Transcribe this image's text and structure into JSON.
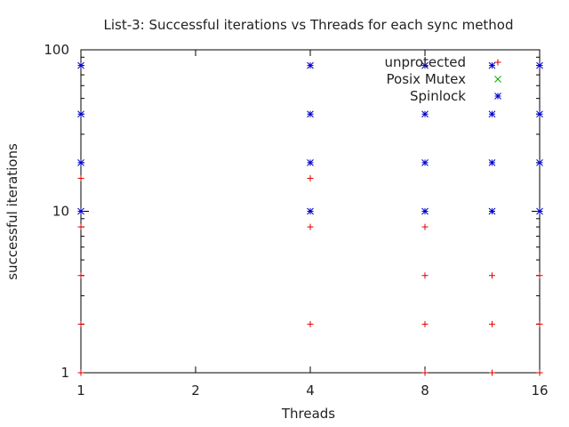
{
  "chart_data": {
    "type": "scatter",
    "title": "List-3: Successful iterations vs Threads for each sync method",
    "xlabel": "Threads",
    "ylabel": "successful iterations",
    "x_scale": "log2",
    "y_scale": "log10",
    "xlim": [
      1,
      16
    ],
    "ylim": [
      1,
      100
    ],
    "x_ticks": [
      1,
      2,
      4,
      8,
      16
    ],
    "y_ticks": [
      1,
      10,
      100
    ],
    "legend_position": "top-right",
    "grid": false,
    "series": [
      {
        "name": "unprotected",
        "color": "#dd0000",
        "marker": "plus",
        "points": [
          {
            "x": 1,
            "y": 1
          },
          {
            "x": 1,
            "y": 2
          },
          {
            "x": 1,
            "y": 4
          },
          {
            "x": 1,
            "y": 8
          },
          {
            "x": 1,
            "y": 16
          },
          {
            "x": 4,
            "y": 2
          },
          {
            "x": 4,
            "y": 8
          },
          {
            "x": 4,
            "y": 16
          },
          {
            "x": 8,
            "y": 1
          },
          {
            "x": 8,
            "y": 2
          },
          {
            "x": 8,
            "y": 4
          },
          {
            "x": 8,
            "y": 8
          },
          {
            "x": 12,
            "y": 1
          },
          {
            "x": 12,
            "y": 2
          },
          {
            "x": 12,
            "y": 4
          },
          {
            "x": 16,
            "y": 1
          },
          {
            "x": 16,
            "y": 2
          },
          {
            "x": 16,
            "y": 4
          }
        ]
      },
      {
        "name": "Posix Mutex",
        "color": "#00aa00",
        "marker": "cross",
        "points": []
      },
      {
        "name": "Spinlock",
        "color": "#0000cc",
        "marker": "star",
        "points": [
          {
            "x": 1,
            "y": 10
          },
          {
            "x": 1,
            "y": 20
          },
          {
            "x": 1,
            "y": 40
          },
          {
            "x": 1,
            "y": 80
          },
          {
            "x": 4,
            "y": 10
          },
          {
            "x": 4,
            "y": 20
          },
          {
            "x": 4,
            "y": 40
          },
          {
            "x": 4,
            "y": 80
          },
          {
            "x": 8,
            "y": 10
          },
          {
            "x": 8,
            "y": 20
          },
          {
            "x": 8,
            "y": 40
          },
          {
            "x": 8,
            "y": 80
          },
          {
            "x": 12,
            "y": 10
          },
          {
            "x": 12,
            "y": 20
          },
          {
            "x": 12,
            "y": 40
          },
          {
            "x": 12,
            "y": 80
          },
          {
            "x": 16,
            "y": 10
          },
          {
            "x": 16,
            "y": 20
          },
          {
            "x": 16,
            "y": 40
          },
          {
            "x": 16,
            "y": 80
          }
        ]
      }
    ]
  }
}
